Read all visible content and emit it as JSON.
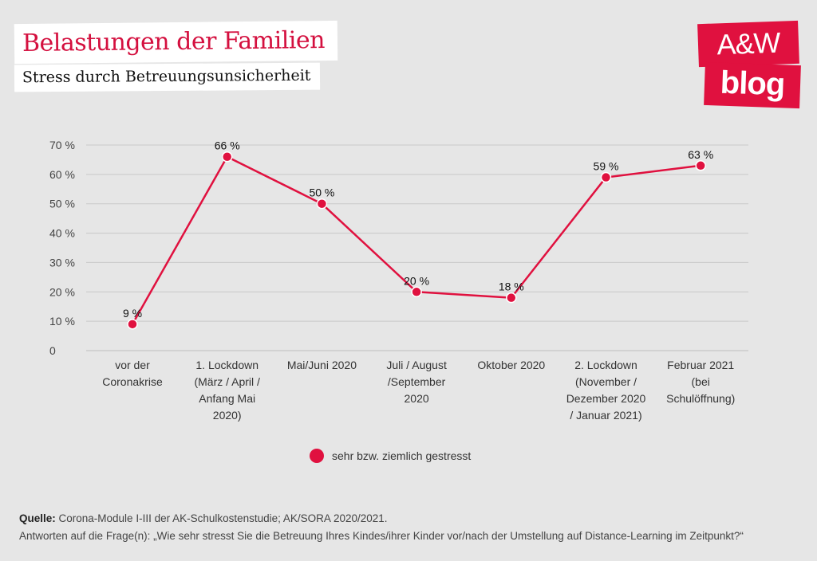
{
  "header": {
    "title": "Belastungen der Familien",
    "subtitle": "Stress durch Betreuungsunsicherheit"
  },
  "logo": {
    "line1": "A&W",
    "line2": "blog",
    "color": "#e0113f"
  },
  "chart_data": {
    "type": "line",
    "title": "",
    "xlabel": "",
    "ylabel": "",
    "categories": [
      [
        "vor der",
        "Coronakrise"
      ],
      [
        "1. Lockdown",
        "(März / April /",
        "Anfang Mai",
        "2020)"
      ],
      [
        "Mai/Juni 2020"
      ],
      [
        "Juli / August",
        "/September",
        "2020"
      ],
      [
        "Oktober 2020"
      ],
      [
        "2. Lockdown",
        "(November /",
        "Dezember 2020",
        "/ Januar 2021)"
      ],
      [
        "Februar 2021",
        "(bei",
        "Schulöffnung)"
      ]
    ],
    "series": [
      {
        "name": "sehr bzw. ziemlich gestresst",
        "values": [
          9,
          66,
          50,
          20,
          18,
          59,
          63
        ],
        "labels": [
          "9 %",
          "66 %",
          "50 %",
          "20 %",
          "18 %",
          "59 %",
          "63 %"
        ],
        "color": "#e0113f"
      }
    ],
    "ylim": [
      0,
      70
    ],
    "yticks": [
      0,
      10,
      20,
      30,
      40,
      50,
      60,
      70
    ],
    "ytick_labels": [
      "0",
      "10 %",
      "20 %",
      "30 %",
      "40 %",
      "50 %",
      "60 %",
      "70 %"
    ],
    "grid": true,
    "legend": "bottom-center"
  },
  "footer": {
    "source_label": "Quelle:",
    "source_text": " Corona-Module I-III der AK-Schulkostenstudie; AK/SORA 2020/2021.",
    "note": "Antworten auf die Frage(n): „Wie sehr stresst Sie die Betreuung Ihres Kindes/ihrer Kinder vor/nach der Umstellung auf Distance-Learning im Zeitpunkt?“"
  }
}
